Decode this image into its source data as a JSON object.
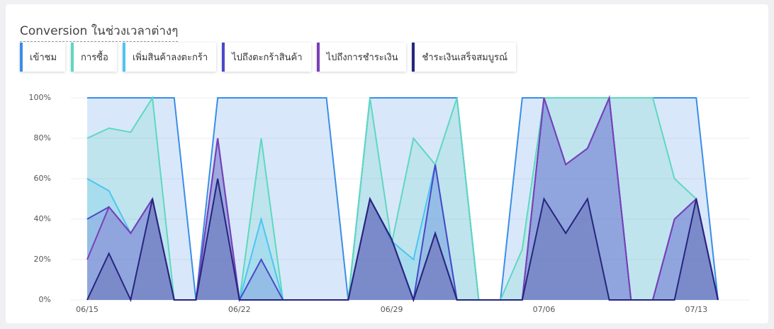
{
  "chart_data": {
    "type": "area",
    "title": "Conversion ในช่วงเวลาต่างๆ",
    "categories": [
      "06/15",
      null,
      null,
      null,
      null,
      null,
      null,
      "06/22",
      null,
      null,
      null,
      null,
      null,
      null,
      "06/29",
      null,
      null,
      null,
      null,
      null,
      null,
      "07/06",
      null,
      null,
      null,
      null,
      null,
      null,
      "07/13",
      null
    ],
    "series": [
      {
        "name": "เข้าชม",
        "color": "#3a8ee6",
        "values": [
          100,
          100,
          100,
          100,
          100,
          0,
          100,
          100,
          100,
          100,
          100,
          100,
          0,
          100,
          100,
          100,
          100,
          100,
          0,
          0,
          100,
          100,
          100,
          100,
          100,
          100,
          100,
          100,
          100,
          0
        ]
      },
      {
        "name": "การซื้อ",
        "color": "#5ed8c0",
        "values": [
          80,
          85,
          83,
          100,
          0,
          0,
          80,
          0,
          80,
          0,
          0,
          0,
          0,
          100,
          28,
          80,
          67,
          100,
          0,
          0,
          25,
          100,
          100,
          100,
          100,
          100,
          100,
          60,
          50,
          0
        ]
      },
      {
        "name": "เพิ่มสินค้าลงตะกร้า",
        "color": "#4ec4f2",
        "values": [
          60,
          54,
          33,
          50,
          0,
          0,
          60,
          0,
          40,
          0,
          0,
          0,
          0,
          50,
          29,
          20,
          67,
          0,
          0,
          0,
          0,
          100,
          67,
          75,
          100,
          0,
          0,
          40,
          50,
          0
        ]
      },
      {
        "name": "ไปถึงตะกร้าสินค้า",
        "color": "#4b47c7",
        "values": [
          40,
          46,
          33,
          50,
          0,
          0,
          80,
          0,
          20,
          0,
          0,
          0,
          0,
          50,
          30,
          0,
          67,
          0,
          0,
          0,
          0,
          100,
          67,
          75,
          100,
          0,
          0,
          40,
          50,
          0
        ]
      },
      {
        "name": "ไปถึงการชำระเงิน",
        "color": "#7b3fb9",
        "values": [
          20,
          46,
          33,
          50,
          0,
          0,
          80,
          0,
          0,
          0,
          0,
          0,
          0,
          50,
          30,
          0,
          33,
          0,
          0,
          0,
          0,
          100,
          67,
          75,
          100,
          0,
          0,
          40,
          50,
          0
        ]
      },
      {
        "name": "ชำระเงินเสร็จสมบูรณ์",
        "color": "#27257e",
        "values": [
          0,
          23,
          0,
          50,
          0,
          0,
          60,
          0,
          0,
          0,
          0,
          0,
          0,
          50,
          30,
          0,
          33,
          0,
          0,
          0,
          0,
          50,
          33,
          50,
          0,
          0,
          0,
          0,
          50,
          0
        ]
      }
    ],
    "ylim": [
      0,
      100
    ],
    "yticks": [
      {
        "value": 0,
        "label": "0%"
      },
      {
        "value": 20,
        "label": "20%"
      },
      {
        "value": 40,
        "label": "40%"
      },
      {
        "value": 60,
        "label": "60%"
      },
      {
        "value": 80,
        "label": "80%"
      },
      {
        "value": 100,
        "label": "100%"
      }
    ],
    "grid": true
  }
}
